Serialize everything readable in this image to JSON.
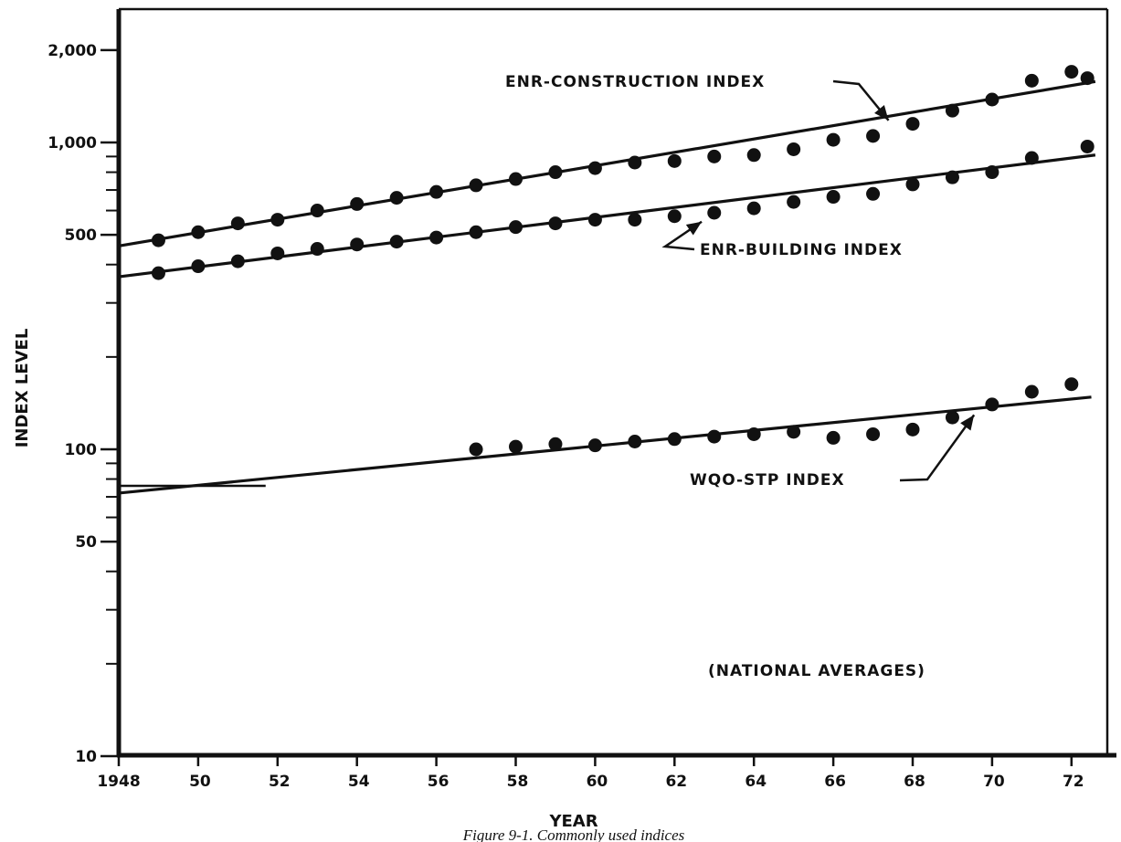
{
  "chart_data": {
    "type": "scatter",
    "title": "",
    "caption": "Figure 9-1.  Commonly used indices",
    "xlabel": "YEAR",
    "ylabel": "INDEX LEVEL",
    "yscale": "log",
    "xlim": [
      1948,
      1973
    ],
    "ylim": [
      10,
      3000
    ],
    "grid": false,
    "x_ticks": [
      {
        "value": 1948,
        "label": "1948"
      },
      {
        "value": 1950,
        "label": "50"
      },
      {
        "value": 1952,
        "label": "52"
      },
      {
        "value": 1954,
        "label": "54"
      },
      {
        "value": 1956,
        "label": "56"
      },
      {
        "value": 1958,
        "label": "58"
      },
      {
        "value": 1960,
        "label": "60"
      },
      {
        "value": 1962,
        "label": "62"
      },
      {
        "value": 1964,
        "label": "64"
      },
      {
        "value": 1966,
        "label": "66"
      },
      {
        "value": 1968,
        "label": "68"
      },
      {
        "value": 1970,
        "label": "70"
      },
      {
        "value": 1972,
        "label": "72"
      }
    ],
    "y_ticks_labeled": [
      {
        "value": 10,
        "label": "10"
      },
      {
        "value": 50,
        "label": "50"
      },
      {
        "value": 100,
        "label": "100"
      },
      {
        "value": 500,
        "label": "500"
      },
      {
        "value": 1000,
        "label": "1,000"
      },
      {
        "value": 2000,
        "label": "2,000"
      }
    ],
    "y_ticks_minor": [
      20,
      30,
      40,
      60,
      70,
      80,
      90,
      200,
      300,
      400,
      600,
      700,
      800,
      900
    ],
    "series": [
      {
        "name": "ENR-CONSTRUCTION INDEX",
        "points": [
          [
            1949,
            480
          ],
          [
            1950,
            510
          ],
          [
            1951,
            545
          ],
          [
            1952,
            560
          ],
          [
            1953,
            600
          ],
          [
            1954,
            630
          ],
          [
            1955,
            660
          ],
          [
            1956,
            690
          ],
          [
            1957,
            725
          ],
          [
            1958,
            760
          ],
          [
            1959,
            800
          ],
          [
            1960,
            825
          ],
          [
            1961,
            860
          ],
          [
            1962,
            870
          ],
          [
            1963,
            900
          ],
          [
            1964,
            910
          ],
          [
            1965,
            950
          ],
          [
            1966,
            1020
          ],
          [
            1967,
            1050
          ],
          [
            1968,
            1150
          ],
          [
            1969,
            1270
          ],
          [
            1970,
            1380
          ],
          [
            1971,
            1590
          ],
          [
            1972,
            1700
          ],
          [
            1972.4,
            1620
          ]
        ],
        "trend": [
          [
            1948,
            460
          ],
          [
            1972.6,
            1580
          ]
        ]
      },
      {
        "name": "ENR-BUILDING INDEX",
        "points": [
          [
            1949,
            375
          ],
          [
            1950,
            395
          ],
          [
            1951,
            410
          ],
          [
            1952,
            435
          ],
          [
            1953,
            450
          ],
          [
            1954,
            465
          ],
          [
            1955,
            475
          ],
          [
            1956,
            490
          ],
          [
            1957,
            510
          ],
          [
            1958,
            530
          ],
          [
            1959,
            545
          ],
          [
            1960,
            560
          ],
          [
            1961,
            560
          ],
          [
            1962,
            575
          ],
          [
            1963,
            590
          ],
          [
            1964,
            610
          ],
          [
            1965,
            640
          ],
          [
            1966,
            665
          ],
          [
            1967,
            680
          ],
          [
            1968,
            730
          ],
          [
            1969,
            770
          ],
          [
            1970,
            800
          ],
          [
            1971,
            890
          ],
          [
            1972.4,
            970
          ]
        ],
        "trend": [
          [
            1948,
            365
          ],
          [
            1972.6,
            910
          ]
        ]
      },
      {
        "name": "WQO-STP INDEX",
        "points": [
          [
            1957,
            100
          ],
          [
            1958,
            102
          ],
          [
            1959,
            104
          ],
          [
            1960,
            103
          ],
          [
            1961,
            106
          ],
          [
            1962,
            108
          ],
          [
            1963,
            110
          ],
          [
            1964,
            112
          ],
          [
            1965,
            114
          ],
          [
            1966,
            109
          ],
          [
            1967,
            112
          ],
          [
            1968,
            116
          ],
          [
            1969,
            127
          ],
          [
            1970,
            140
          ],
          [
            1971,
            154
          ],
          [
            1972,
            163
          ]
        ],
        "trend": [
          [
            1948,
            72
          ],
          [
            1972.5,
            148
          ]
        ]
      }
    ],
    "reference_segment": {
      "x": [
        1948,
        1951.7
      ],
      "y": 76
    },
    "annotations": [
      {
        "text": "ENR-CONSTRUCTION INDEX",
        "target": [
          1967.3,
          1180
        ]
      },
      {
        "text": "ENR-BUILDING INDEX",
        "target": [
          1962.5,
          575
        ]
      },
      {
        "text": "WQO-STP INDEX",
        "target": [
          1969.5,
          133
        ]
      },
      {
        "text": "(NATIONAL AVERAGES)"
      }
    ]
  }
}
